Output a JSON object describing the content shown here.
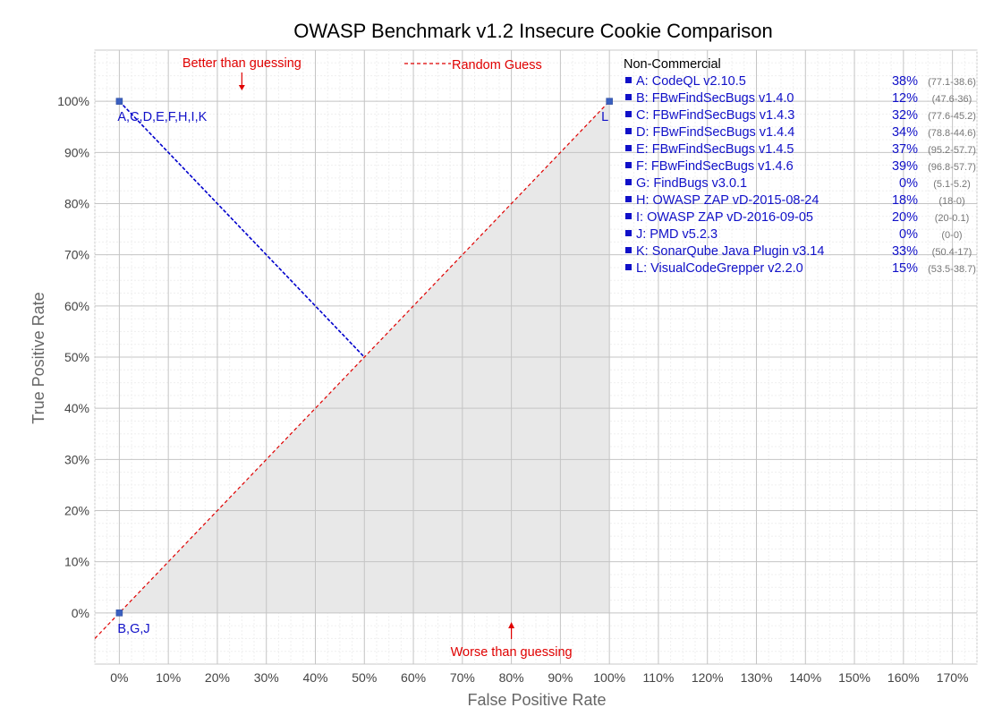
{
  "chart_data": {
    "type": "scatter",
    "title": "OWASP Benchmark v1.2 Insecure Cookie Comparison",
    "xlabel": "False Positive Rate",
    "ylabel": "True Positive Rate",
    "xlim": [
      -5,
      175
    ],
    "ylim": [
      -10,
      110
    ],
    "x_ticks": [
      "0%",
      "10%",
      "20%",
      "30%",
      "40%",
      "50%",
      "60%",
      "70%",
      "80%",
      "90%",
      "100%",
      "110%",
      "120%",
      "130%",
      "140%",
      "150%",
      "160%",
      "170%"
    ],
    "y_ticks": [
      "0%",
      "10%",
      "20%",
      "30%",
      "40%",
      "50%",
      "60%",
      "70%",
      "80%",
      "90%",
      "100%"
    ],
    "grid": true,
    "points": [
      {
        "x": 0,
        "y": 100,
        "label": "A,C,D,E,F,H,I,K"
      },
      {
        "x": 0,
        "y": 0,
        "label": "B,G,J"
      },
      {
        "x": 100,
        "y": 100,
        "label": "L"
      }
    ],
    "projection_line": {
      "from": [
        0,
        100
      ],
      "to": [
        50,
        50
      ]
    },
    "random_guess_label": "Random Guess",
    "annotations": {
      "better": "Better than guessing",
      "worse": "Worse than guessing"
    },
    "legend": {
      "heading": "Non-Commercial",
      "placement": "right",
      "entries": [
        {
          "name": "A: CodeQL v2.10.5",
          "pct": "38%",
          "range": "(77.1-38.6)"
        },
        {
          "name": "B: FBwFindSecBugs v1.4.0",
          "pct": "12%",
          "range": "(47.6-36)"
        },
        {
          "name": "C: FBwFindSecBugs v1.4.3",
          "pct": "32%",
          "range": "(77.6-45.2)"
        },
        {
          "name": "D: FBwFindSecBugs v1.4.4",
          "pct": "34%",
          "range": "(78.8-44.6)"
        },
        {
          "name": "E: FBwFindSecBugs v1.4.5",
          "pct": "37%",
          "range": "(95.2-57.7)"
        },
        {
          "name": "F: FBwFindSecBugs v1.4.6",
          "pct": "39%",
          "range": "(96.8-57.7)"
        },
        {
          "name": "G: FindBugs v3.0.1",
          "pct": "0%",
          "range": "(5.1-5.2)"
        },
        {
          "name": "H: OWASP ZAP vD-2015-08-24",
          "pct": "18%",
          "range": "(18-0)"
        },
        {
          "name": "I:   OWASP ZAP vD-2016-09-05",
          "pct": "20%",
          "range": "(20-0.1)"
        },
        {
          "name": "J:  PMD v5.2.3",
          "pct": "0%",
          "range": "(0-0)"
        },
        {
          "name": "K: SonarQube Java Plugin v3.14",
          "pct": "33%",
          "range": "(50.4-17)"
        },
        {
          "name": "L: VisualCodeGrepper v2.2.0",
          "pct": "15%",
          "range": "(53.5-38.7)"
        }
      ]
    },
    "colors": {
      "points": "#3a5fbf",
      "labels": "#1010c8",
      "random_line": "#e00000",
      "projection": "#0000cc",
      "shaded": "#e8e8e8"
    }
  }
}
